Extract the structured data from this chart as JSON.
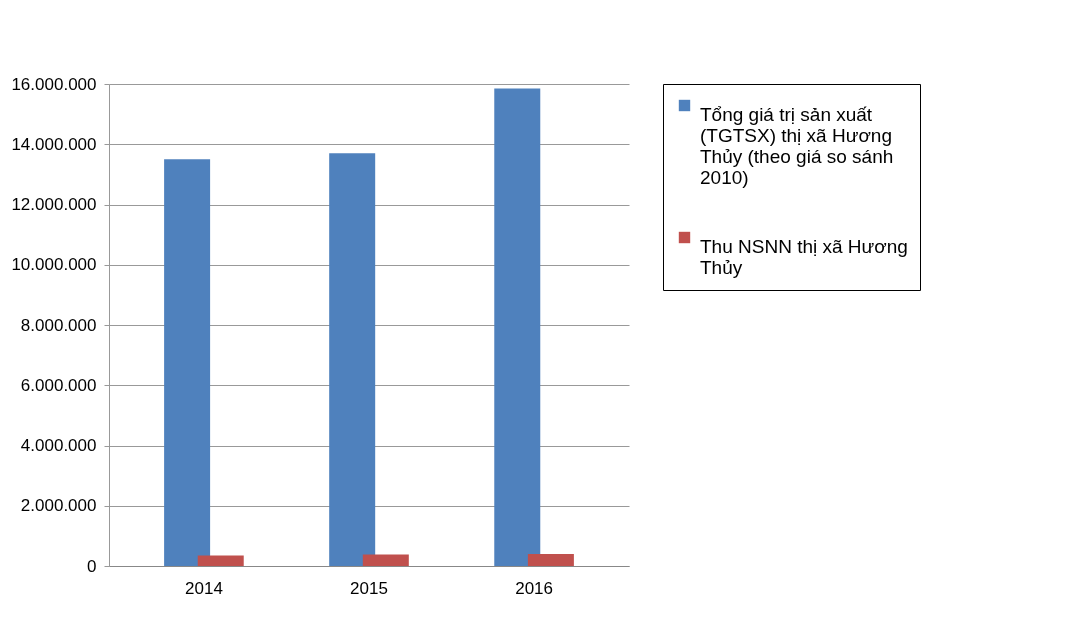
{
  "chart_data": {
    "type": "bar",
    "categories": [
      "2014",
      "2015",
      "2016"
    ],
    "series": [
      {
        "name": "Tổng giá trị sản xuất (TGTSX) thị xã Hương Thủy (theo giá so sánh 2010)",
        "color": "#4f81bd",
        "values": [
          13500000,
          13700000,
          15850000
        ]
      },
      {
        "name": "Thu NSNN thị xã Hương Thủy",
        "color": "#c0504d",
        "values": [
          350000,
          380000,
          400000
        ]
      }
    ],
    "ylim": [
      0,
      16000000
    ],
    "yticks": [
      {
        "value": 0,
        "label": "0"
      },
      {
        "value": 2000000,
        "label": "2.000.000"
      },
      {
        "value": 4000000,
        "label": "4.000.000"
      },
      {
        "value": 6000000,
        "label": "6.000.000"
      },
      {
        "value": 8000000,
        "label": "8.000.000"
      },
      {
        "value": 10000000,
        "label": "10.000.000"
      },
      {
        "value": 12000000,
        "label": "12.000.000"
      },
      {
        "value": 14000000,
        "label": "14.000.000"
      },
      {
        "value": 16000000,
        "label": "16.000.000"
      }
    ],
    "grid": true,
    "legend": "right"
  }
}
